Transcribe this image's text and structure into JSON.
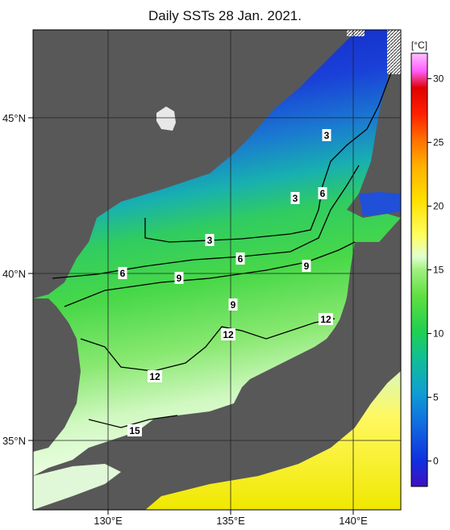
{
  "title": "Daily SSTs 28 Jan. 2021.",
  "axes": {
    "lon_ticks": [
      "130°E",
      "135°E",
      "140°E"
    ],
    "lat_ticks": [
      "45°N",
      "40°N",
      "35°N"
    ]
  },
  "colorbar": {
    "unit": "[°C]",
    "ticks": [
      "30",
      "25",
      "20",
      "15",
      "10",
      "5",
      "0"
    ],
    "range": [
      -2,
      32
    ],
    "colors": [
      "#4010c0",
      "#1030e0",
      "#1070e0",
      "#10a0d0",
      "#10c090",
      "#20d050",
      "#60e040",
      "#a0f080",
      "#e0ffd0",
      "#ffff60",
      "#ffe000",
      "#ffb000",
      "#ff7000",
      "#ff2000",
      "#e00000",
      "#ff60ff",
      "#ffc0ff"
    ]
  },
  "contour_labels": [
    "3",
    "3",
    "3",
    "6",
    "6",
    "6",
    "9",
    "9",
    "9",
    "12",
    "12",
    "12",
    "15"
  ]
}
